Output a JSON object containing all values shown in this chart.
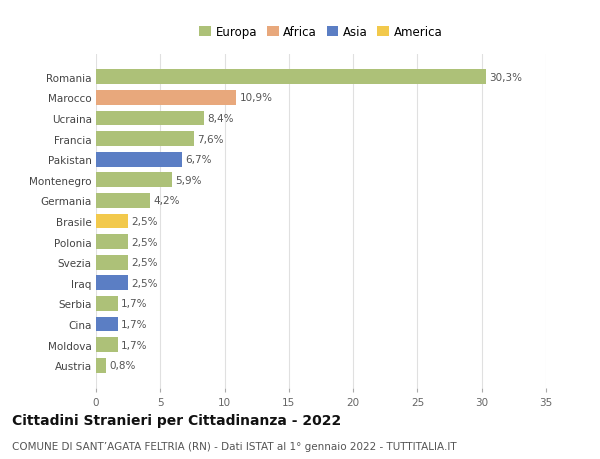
{
  "countries": [
    "Romania",
    "Marocco",
    "Ucraina",
    "Francia",
    "Pakistan",
    "Montenegro",
    "Germania",
    "Brasile",
    "Polonia",
    "Svezia",
    "Iraq",
    "Serbia",
    "Cina",
    "Moldova",
    "Austria"
  ],
  "values": [
    30.3,
    10.9,
    8.4,
    7.6,
    6.7,
    5.9,
    4.2,
    2.5,
    2.5,
    2.5,
    2.5,
    1.7,
    1.7,
    1.7,
    0.8
  ],
  "labels": [
    "30,3%",
    "10,9%",
    "8,4%",
    "7,6%",
    "6,7%",
    "5,9%",
    "4,2%",
    "2,5%",
    "2,5%",
    "2,5%",
    "2,5%",
    "1,7%",
    "1,7%",
    "1,7%",
    "0,8%"
  ],
  "continents": [
    "Europa",
    "Africa",
    "Europa",
    "Europa",
    "Asia",
    "Europa",
    "Europa",
    "America",
    "Europa",
    "Europa",
    "Asia",
    "Europa",
    "Asia",
    "Europa",
    "Europa"
  ],
  "colors": {
    "Europa": "#adc178",
    "Africa": "#e8a87c",
    "Asia": "#5b7ec4",
    "America": "#f2c94c"
  },
  "xlim": [
    0,
    35
  ],
  "xticks": [
    0,
    5,
    10,
    15,
    20,
    25,
    30,
    35
  ],
  "title": "Cittadini Stranieri per Cittadinanza - 2022",
  "subtitle": "COMUNE DI SANT’AGATA FELTRIA (RN) - Dati ISTAT al 1° gennaio 2022 - TUTTITALIA.IT",
  "background_color": "#ffffff",
  "grid_color": "#e0e0e0",
  "bar_height": 0.72,
  "title_fontsize": 10,
  "subtitle_fontsize": 7.5,
  "label_fontsize": 7.5,
  "tick_fontsize": 7.5,
  "legend_fontsize": 8.5
}
